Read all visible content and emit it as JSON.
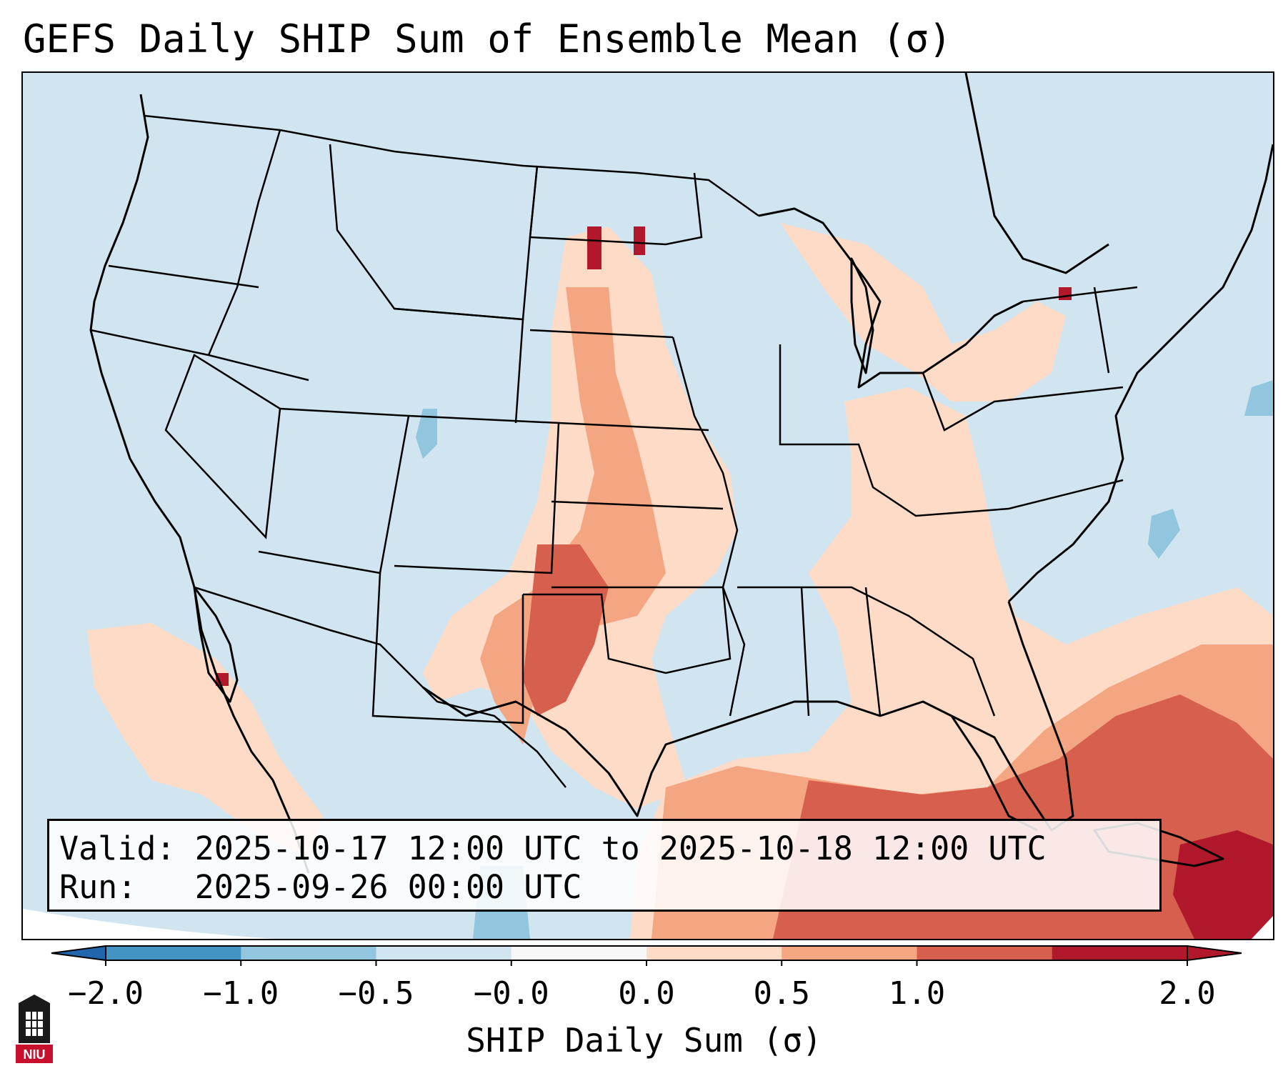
{
  "title": "GEFS Daily SHIP Sum of Ensemble Mean (σ)",
  "info": {
    "valid_line": "Valid: 2025-10-17 12:00 UTC to 2025-10-18 12:00 UTC",
    "run_line": "Run:   2025-09-26 00:00 UTC"
  },
  "colorbar": {
    "label": "SHIP Daily Sum (σ)",
    "ticks": [
      "−2.0",
      "−1.0",
      "−0.5",
      "−0.0",
      "0.0",
      "0.5",
      "1.0",
      "2.0"
    ],
    "colors": [
      "#4393c3",
      "#92c5de",
      "#d1e5f0",
      "#f7f7f7",
      "#fddbc7",
      "#f4a582",
      "#d6604d",
      "#b2182b"
    ],
    "extend": "both"
  },
  "logo": {
    "text": "NIU",
    "color": "#c8102e"
  },
  "colors": {
    "background_category": "#d1e5f0",
    "coastline": "#000000",
    "state_borders": "#000000"
  }
}
